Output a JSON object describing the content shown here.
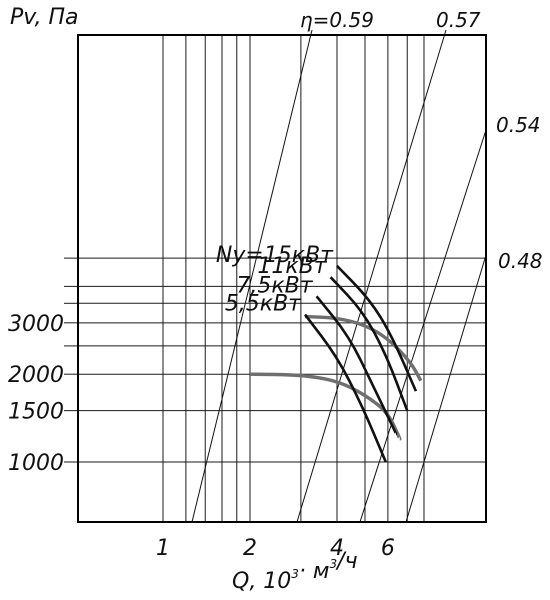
{
  "chart_data": {
    "type": "line",
    "y_axis_label": "Pv, Па",
    "x_axis_label": {
      "prefix": "Q, 10",
      "exp": "3",
      "mid": "· м",
      "exp2": "3",
      "suffix": "/ч"
    },
    "x_ticks": [
      {
        "value": 1,
        "label": "1"
      },
      {
        "value": 2,
        "label": "2"
      },
      {
        "value": 4,
        "label": "4"
      },
      {
        "value": 6,
        "label": "6"
      }
    ],
    "y_ticks": [
      {
        "value": 1000,
        "label": "1000"
      },
      {
        "value": 1500,
        "label": "1500"
      },
      {
        "value": 2000,
        "label": "2000"
      },
      {
        "value": 3000,
        "label": "3000"
      }
    ],
    "power_curves": [
      {
        "name": "Ny=15кВт",
        "points": [
          [
            4.0,
            4700
          ],
          [
            5.2,
            3600
          ],
          [
            6.2,
            2700
          ],
          [
            7.5,
            1750
          ]
        ]
      },
      {
        "name": "11кВт",
        "points": [
          [
            3.8,
            4300
          ],
          [
            4.9,
            3300
          ],
          [
            5.9,
            2350
          ],
          [
            7.0,
            1500
          ]
        ]
      },
      {
        "name": "7,5кВт",
        "points": [
          [
            3.4,
            3700
          ],
          [
            4.4,
            2700
          ],
          [
            5.3,
            1850
          ],
          [
            6.4,
            1250
          ]
        ]
      },
      {
        "name": "5,5кВт",
        "points": [
          [
            3.1,
            3200
          ],
          [
            4.0,
            2300
          ],
          [
            4.9,
            1550
          ],
          [
            5.9,
            1000
          ]
        ]
      }
    ],
    "speed_curves": [
      {
        "points": [
          [
            3.1,
            3150
          ],
          [
            4.0,
            3120
          ],
          [
            5.0,
            2950
          ],
          [
            6.0,
            2650
          ],
          [
            7.2,
            2200
          ],
          [
            7.8,
            1900
          ]
        ]
      },
      {
        "points": [
          [
            2.0,
            2000
          ],
          [
            3.0,
            1990
          ],
          [
            4.0,
            1900
          ],
          [
            5.0,
            1700
          ],
          [
            6.0,
            1480
          ],
          [
            6.6,
            1200
          ]
        ]
      }
    ],
    "efficiency_lines": [
      {
        "name": "η=0.59",
        "label": "η=0.59"
      },
      {
        "name": "0.57",
        "label": "0.57"
      },
      {
        "name": "0.54",
        "label": "0.54"
      },
      {
        "name": "0.48",
        "label": "0.48"
      }
    ]
  }
}
